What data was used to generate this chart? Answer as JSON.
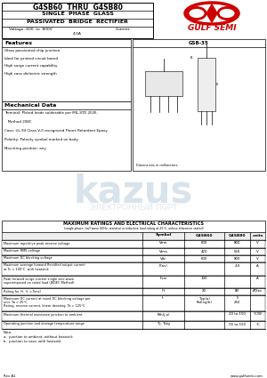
{
  "title_part": "G4SB60  THRU  G4SB80",
  "title_line2": "SINGLE  PHASE  GLASS",
  "title_line3": "PASSIVATED  BRIDGE  RECTIFIER",
  "title_voltage": "Voltage: 600  to  800V",
  "title_current_label": "Current:",
  "title_current_val": "4.0A",
  "brand": "GULF SEMI",
  "package": "GSB-35",
  "features_title": "Features",
  "features": [
    "Glass passivated chip junction",
    "Ideal for printed circuit board",
    "High surge current capability",
    "High case dielectric strength"
  ],
  "mech_title": "Mechanical Data",
  "mech_items": [
    "Terminal: Plated leads solderable per MIL-STD 202E,",
    "   Method 208C",
    "Case: UL-94 Class V-0 recognized Flame Retardant Epoxy",
    "Polarity: Polarity symbol marked on body",
    "Mounting position: any"
  ],
  "dim_label": "Dimensions in millimeters",
  "ratings_title": "MAXIMUM RATINGS AND ELECTRICAL CHARACTERISTICS",
  "ratings_sub": "(single-phase, half wave 60Hz, resistive or inductive load rating at 25°C, unless otherwise stated)",
  "col_headers": [
    "Symbol",
    "G4SB60",
    "G4SB80",
    "units"
  ],
  "rows": [
    [
      "Maximum repetitive peak reverse voltage",
      "Vrrm",
      "600",
      "800",
      "V"
    ],
    [
      "Maximum RMS voltage",
      "Vrms",
      "420",
      "560",
      "V"
    ],
    [
      "Maximum DC blocking voltage",
      "Vdc",
      "600",
      "800",
      "V"
    ],
    [
      "Maximum average forward Rectified output current\nat Tc = 100°C  with heatsink",
      "F(av)",
      "",
      "4.0",
      "A"
    ],
    [
      "Peak forward surge current single sine-wave\nsuperimposed on rated load (JEDEC Method)",
      "Ifsm",
      "100",
      "",
      "A"
    ],
    [
      "Rating for I²t  (t = 5ms)",
      "I²t",
      "20",
      "80",
      "A²Sec"
    ],
    [
      "Maximum DC current at rated DC blocking voltage per\nunit  Ta = 25°C\nRating, reverse current, linear derating  Ta = 125°C",
      "Ir",
      "Typ(a)\nRating(b)",
      "5\n250",
      "",
      "μA"
    ],
    [
      "Maximum thermal resistance junction to ambient",
      "Rth(j-a)",
      "",
      "20 to 150",
      "°C/W"
    ],
    [
      "Operating junction and storage temperature range",
      "Tj, Tstg",
      "",
      "-55 to 150",
      "°C"
    ]
  ],
  "notes": [
    "Note:",
    "a:  junction to ambient, without heatsink",
    "b:  junction to case, with heatsink"
  ],
  "rev": "Rev A1",
  "website": "www.gulfsemi.com",
  "bg_color": "#ffffff",
  "red_color": "#cc0000",
  "watermark_color": "#b8ccdd",
  "watermark2_color": "#c0cedd"
}
